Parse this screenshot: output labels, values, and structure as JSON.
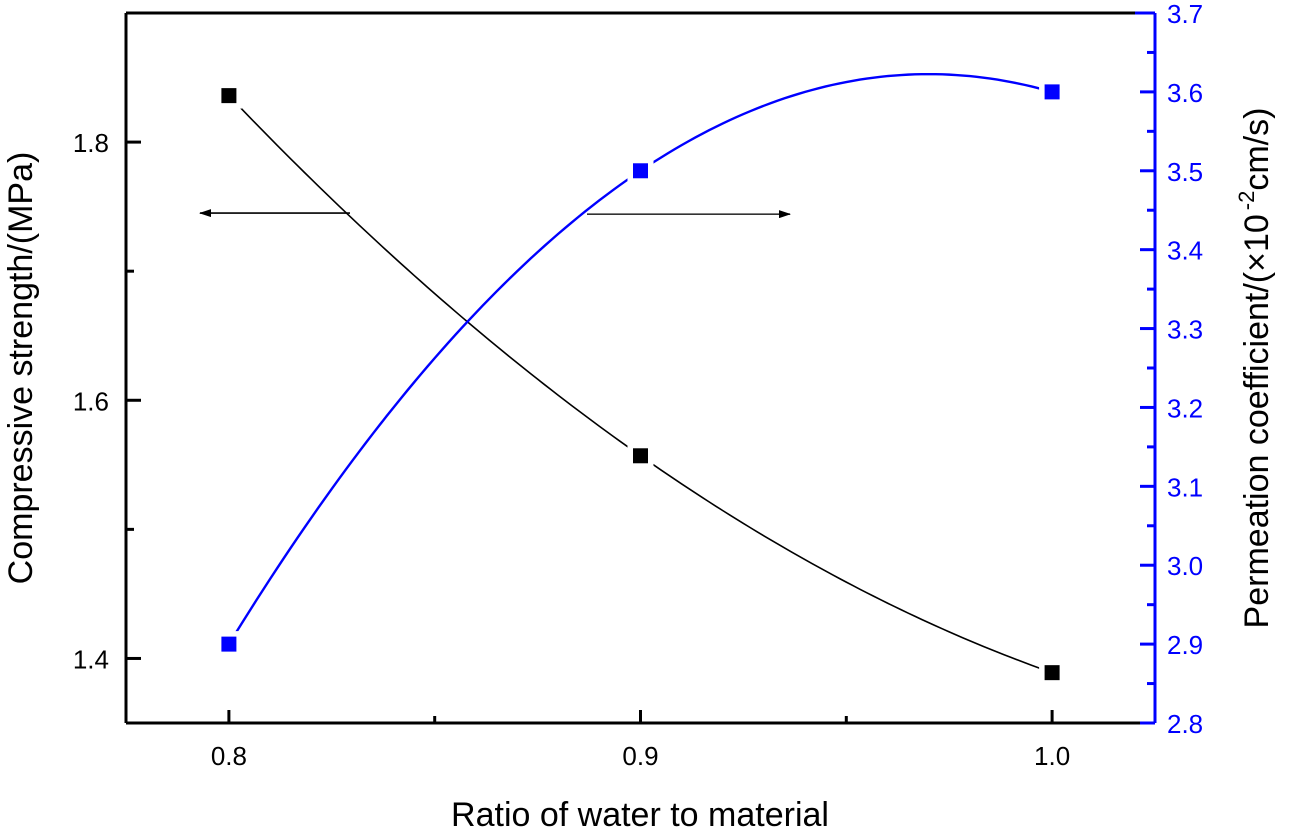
{
  "chart_data": {
    "type": "line",
    "title": "",
    "xlabel": "Ratio of water to material",
    "ylabel_left": "Compressive strength/(MPa)",
    "ylabel_right": {
      "prefix": "Permeation coefficient/(×10",
      "superscript": "-2",
      "suffix": "cm/s)"
    },
    "xlim": [
      0.775,
      1.025
    ],
    "ylim_left": [
      1.35,
      1.9
    ],
    "ylim_right": [
      2.8,
      3.7
    ],
    "x_ticks": [
      "0.8",
      "0.9",
      "1.0"
    ],
    "x_tick_values": [
      0.8,
      0.9,
      1.0
    ],
    "x_minor_ticks": [
      0.85,
      0.95
    ],
    "y_left_ticks": [
      "1.4",
      "1.6",
      "1.8"
    ],
    "y_left_tick_values": [
      1.4,
      1.6,
      1.8
    ],
    "y_left_minor_ticks": [
      1.5,
      1.7
    ],
    "y_right_ticks": [
      "2.8",
      "2.9",
      "3.0",
      "3.1",
      "3.2",
      "3.3",
      "3.4",
      "3.5",
      "3.6",
      "3.7"
    ],
    "y_right_tick_values": [
      2.8,
      2.9,
      3.0,
      3.1,
      3.2,
      3.3,
      3.4,
      3.5,
      3.6,
      3.7
    ],
    "y_right_minor_ticks": [
      2.85,
      2.95,
      3.05,
      3.15,
      3.25,
      3.35,
      3.45,
      3.55,
      3.65
    ],
    "grid": false,
    "legend": null,
    "series": [
      {
        "name": "Compressive strength",
        "axis": "left",
        "color": "#000000",
        "marker": "square",
        "x": [
          0.8,
          0.9,
          1.0
        ],
        "values": [
          1.836,
          1.557,
          1.389
        ]
      },
      {
        "name": "Permeation coefficient",
        "axis": "right",
        "color": "#0000ff",
        "marker": "square",
        "x": [
          0.8,
          0.9,
          1.0
        ],
        "values": [
          2.9,
          3.5,
          3.6
        ]
      }
    ],
    "annotations": [
      {
        "type": "arrow",
        "direction": "left",
        "points_to_axis": "left",
        "anchor_series": "Compressive strength",
        "at_value_left": 1.745
      },
      {
        "type": "arrow",
        "direction": "right",
        "points_to_axis": "right",
        "anchor_series": "Permeation coefficient",
        "at_value_right": 3.445
      }
    ],
    "colors": {
      "left_axis": "#000000",
      "right_axis": "#0000ff"
    }
  }
}
